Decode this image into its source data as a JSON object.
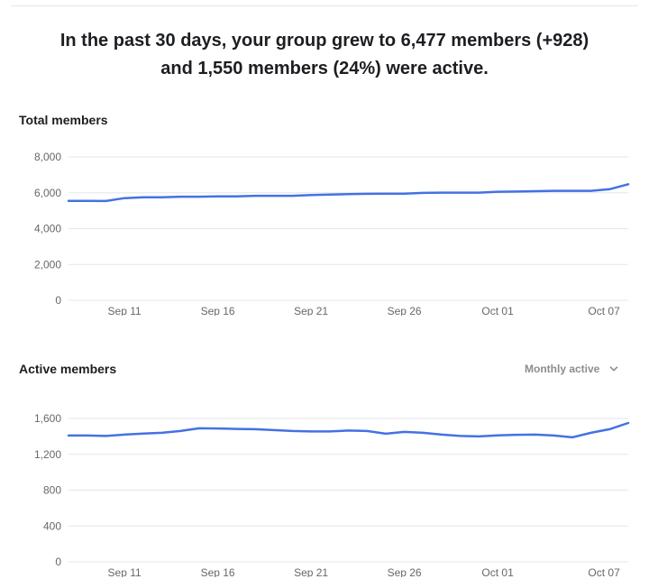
{
  "summary": {
    "line1": "In the past 30 days, your group grew to 6,477 members (+928)",
    "line2": "and 1,550 members (24%) were active."
  },
  "colors": {
    "series": "#4472e3",
    "grid": "#e4e6eb",
    "axis_text": "#65676b",
    "muted": "#8a8d91"
  },
  "active_filter": {
    "selected": "Monthly active",
    "icon": "chevron-down-icon"
  },
  "chart_data": [
    {
      "type": "line",
      "title": "Total members",
      "x_ticks": [
        "Sep 11",
        "Sep 16",
        "Sep 21",
        "Sep 26",
        "Oct 01",
        "Oct 07"
      ],
      "x_tick_index": [
        3,
        8,
        13,
        18,
        23,
        28.7
      ],
      "y_ticks": [
        "0",
        "2,000",
        "4,000",
        "6,000",
        "8,000"
      ],
      "ylim": [
        0,
        8000
      ],
      "grid": true,
      "series": [
        {
          "values": [
            5550,
            5550,
            5540,
            5700,
            5750,
            5750,
            5780,
            5780,
            5800,
            5800,
            5830,
            5830,
            5830,
            5870,
            5900,
            5920,
            5940,
            5950,
            5950,
            5990,
            6010,
            6010,
            6010,
            6060,
            6070,
            6090,
            6110,
            6110,
            6110,
            6200,
            6477
          ]
        }
      ]
    },
    {
      "type": "line",
      "title": "Active members",
      "x_ticks": [
        "Sep 11",
        "Sep 16",
        "Sep 21",
        "Sep 26",
        "Oct 01",
        "Oct 07"
      ],
      "x_tick_index": [
        3,
        8,
        13,
        18,
        23,
        28.7
      ],
      "y_ticks": [
        "0",
        "400",
        "800",
        "1,200",
        "1,600"
      ],
      "ylim": [
        0,
        1600
      ],
      "grid": true,
      "series": [
        {
          "values": [
            1410,
            1410,
            1405,
            1420,
            1432,
            1440,
            1460,
            1490,
            1488,
            1483,
            1480,
            1470,
            1460,
            1455,
            1455,
            1465,
            1460,
            1430,
            1450,
            1440,
            1420,
            1405,
            1400,
            1412,
            1418,
            1420,
            1410,
            1390,
            1440,
            1480,
            1550
          ]
        }
      ]
    }
  ]
}
